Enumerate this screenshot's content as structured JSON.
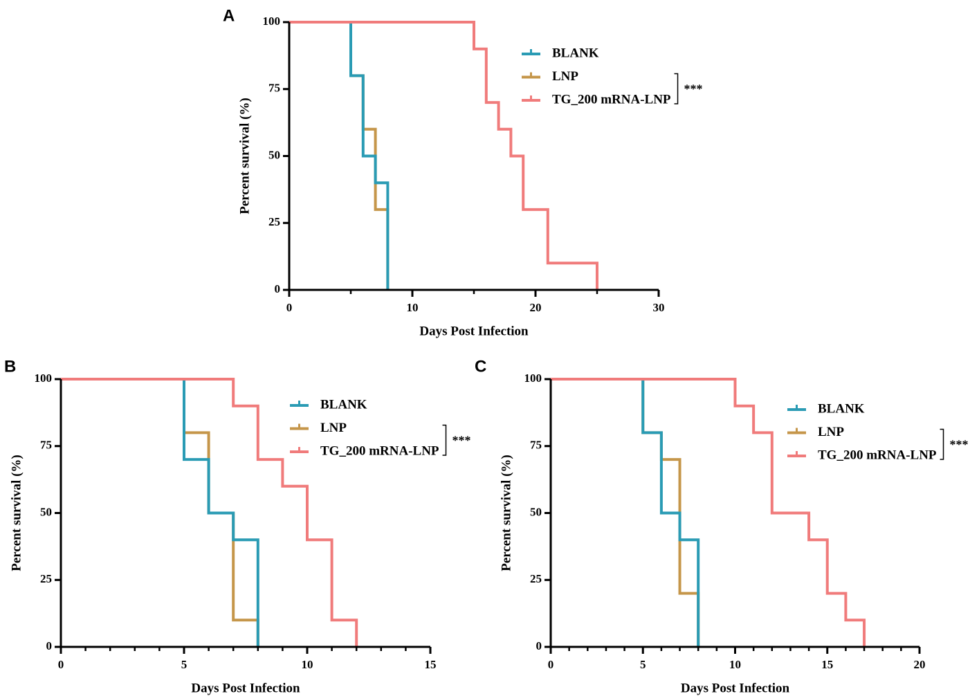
{
  "colors": {
    "BLANK": "#2a9bb4",
    "LNP": "#c5964a",
    "TG_200 mRNA-LNP": "#f07b7b",
    "axis": "#000000"
  },
  "chart_data": [
    {
      "panel": "A",
      "type": "line",
      "subtype": "kaplan-meier",
      "xlabel": "Days Post Infection",
      "ylabel": "Percent survival (%)",
      "xlim": [
        0,
        30
      ],
      "ylim": [
        0,
        100
      ],
      "xticks": [
        0,
        10,
        20,
        30
      ],
      "yticks": [
        0,
        25,
        50,
        75,
        100
      ],
      "significance": "***",
      "series": [
        {
          "name": "BLANK",
          "x": [
            0,
            5,
            6,
            7,
            8
          ],
          "y": [
            100,
            80,
            50,
            40,
            0
          ]
        },
        {
          "name": "LNP",
          "x": [
            0,
            5,
            6,
            7,
            8
          ],
          "y": [
            100,
            80,
            60,
            30,
            0
          ]
        },
        {
          "name": "TG_200 mRNA-LNP",
          "x": [
            0,
            15,
            16,
            17,
            18,
            19,
            21,
            25
          ],
          "y": [
            100,
            90,
            70,
            60,
            50,
            30,
            10,
            0
          ]
        }
      ]
    },
    {
      "panel": "B",
      "type": "line",
      "subtype": "kaplan-meier",
      "xlabel": "Days Post Infection",
      "ylabel": "Percent survival (%)",
      "xlim": [
        0,
        15
      ],
      "ylim": [
        0,
        100
      ],
      "xticks": [
        0,
        5,
        10,
        15
      ],
      "yticks": [
        0,
        25,
        50,
        75,
        100
      ],
      "significance": "***",
      "series": [
        {
          "name": "BLANK",
          "x": [
            0,
            5,
            6,
            7,
            8
          ],
          "y": [
            100,
            70,
            50,
            40,
            0
          ]
        },
        {
          "name": "LNP",
          "x": [
            0,
            5,
            6,
            7,
            8
          ],
          "y": [
            100,
            80,
            50,
            10,
            0
          ]
        },
        {
          "name": "TG_200 mRNA-LNP",
          "x": [
            0,
            7,
            8,
            9,
            10,
            11,
            12
          ],
          "y": [
            100,
            90,
            70,
            60,
            40,
            10,
            0
          ]
        }
      ]
    },
    {
      "panel": "C",
      "type": "line",
      "subtype": "kaplan-meier",
      "xlabel": "Days Post Infection",
      "ylabel": "Percent survival (%)",
      "xlim": [
        0,
        20
      ],
      "ylim": [
        0,
        100
      ],
      "xticks": [
        0,
        5,
        10,
        15,
        20
      ],
      "yticks": [
        0,
        25,
        50,
        75,
        100
      ],
      "significance": "***",
      "series": [
        {
          "name": "BLANK",
          "x": [
            0,
            5,
            6,
            7,
            8
          ],
          "y": [
            100,
            80,
            50,
            40,
            0
          ]
        },
        {
          "name": "LNP",
          "x": [
            0,
            5,
            6,
            7,
            8
          ],
          "y": [
            100,
            80,
            70,
            20,
            0
          ]
        },
        {
          "name": "TG_200 mRNA-LNP",
          "x": [
            0,
            10,
            11,
            12,
            14,
            15,
            16,
            17
          ],
          "y": [
            100,
            90,
            80,
            50,
            40,
            20,
            10,
            0
          ]
        }
      ]
    }
  ]
}
